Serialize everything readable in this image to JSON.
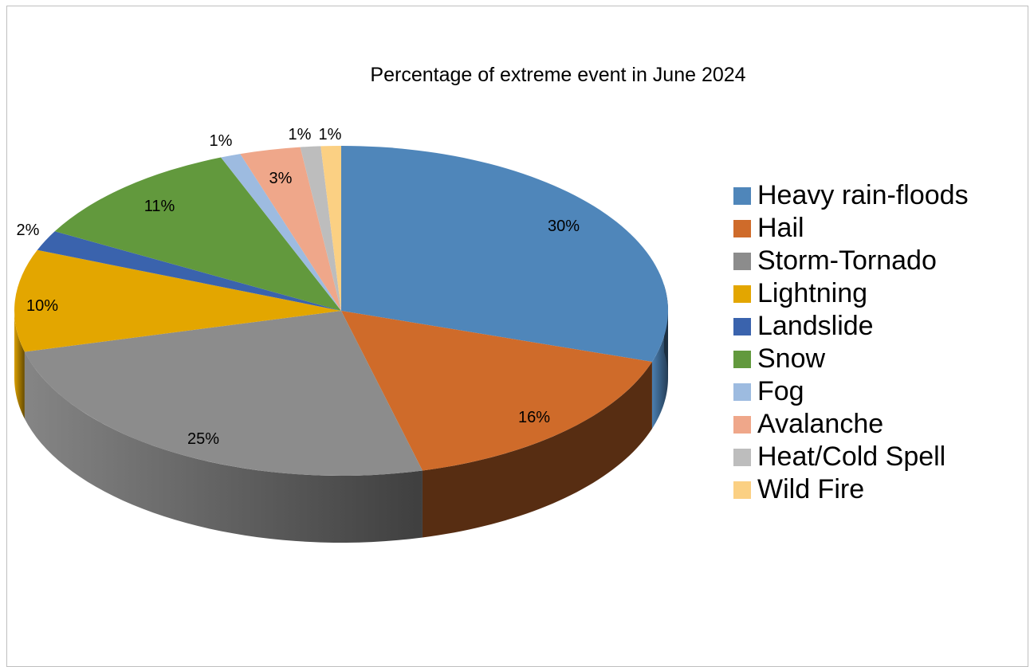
{
  "chart_data": {
    "type": "pie",
    "title": "Percentage of extreme event in June 2024",
    "legend_position": "right",
    "slices": [
      {
        "label": "Heavy rain-floods",
        "value": 30,
        "display": "30%",
        "color": "#4F86BA"
      },
      {
        "label": "Hail",
        "value": 16,
        "display": "16%",
        "color": "#CF6B2A"
      },
      {
        "label": "Storm-Tornado",
        "value": 25,
        "display": "25%",
        "color": "#8C8C8C"
      },
      {
        "label": "Lightning",
        "value": 10,
        "display": "10%",
        "color": "#E3A600"
      },
      {
        "label": "Landslide",
        "value": 2,
        "display": "2%",
        "color": "#3A63AD"
      },
      {
        "label": "Snow",
        "value": 11,
        "display": "11%",
        "color": "#62993D"
      },
      {
        "label": "Fog",
        "value": 1,
        "display": "1%",
        "color": "#9DBBE0"
      },
      {
        "label": "Avalanche",
        "value": 3,
        "display": "3%",
        "color": "#EFA78A"
      },
      {
        "label": "Heat/Cold Spell",
        "value": 1,
        "display": "1%",
        "color": "#BDBDBD"
      },
      {
        "label": "Wild Fire",
        "value": 1,
        "display": "1%",
        "color": "#FBD083"
      }
    ]
  }
}
